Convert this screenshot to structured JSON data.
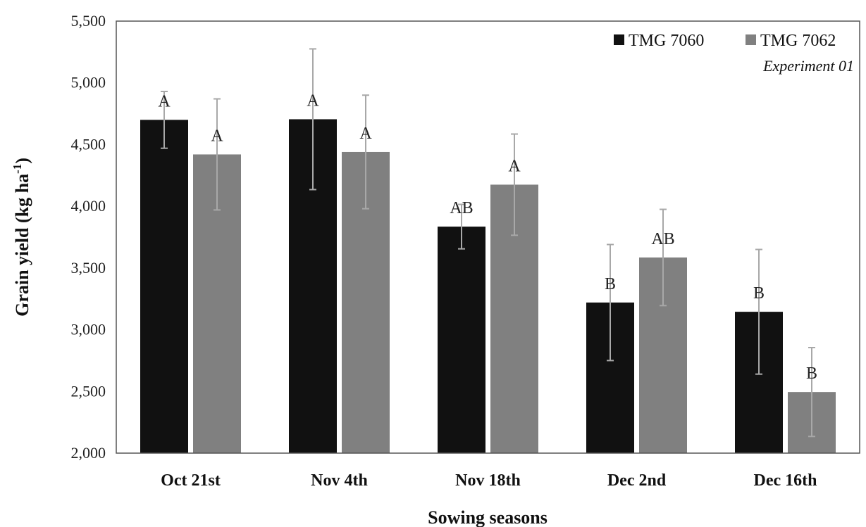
{
  "chart_data": {
    "type": "bar",
    "categories": [
      "Oct 21st",
      "Nov 4th",
      "Nov 18th",
      "Dec 2nd",
      "Dec 16th"
    ],
    "series": [
      {
        "name": "TMG 7060",
        "color": "#111111",
        "values": [
          4700,
          4705,
          3835,
          3220,
          3145
        ],
        "error": [
          230,
          570,
          180,
          470,
          505
        ],
        "labels": [
          "A",
          "A",
          "AB",
          "B",
          "B"
        ]
      },
      {
        "name": "TMG 7062",
        "color": "#808080",
        "values": [
          4420,
          4440,
          4175,
          3585,
          2495
        ],
        "error": [
          450,
          460,
          410,
          390,
          360
        ],
        "labels": [
          "A",
          "A",
          "A",
          "AB",
          "B"
        ]
      }
    ],
    "ylim": [
      2000,
      5500
    ],
    "yticks": [
      "2,000",
      "2,500",
      "3,000",
      "3,500",
      "4,000",
      "4,500",
      "5,000",
      "5,500"
    ],
    "xlabel": "Sowing seasons",
    "ylabel_main": "Grain yield (kg ha",
    "ylabel_sup": "-1",
    "ylabel_close": ")",
    "annotation": "Experiment 01",
    "legend_position": "top-right",
    "grid": false
  }
}
